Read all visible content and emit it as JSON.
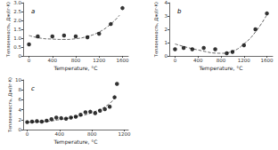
{
  "chart_data": [
    {
      "type": "scatter",
      "title": "a",
      "x_label": "Temperature, °C",
      "y_label": "Теплоемкость, Дж/(г·К)",
      "xlim": [
        -100,
        1700
      ],
      "xticks": [
        0,
        400,
        800,
        1200,
        1600
      ],
      "ylim": [
        0,
        3
      ],
      "yticks": [
        0,
        0.5,
        {
          "value": 1,
          "label": "1.0"
        },
        1.5,
        {
          "value": 2,
          "label": "2.0"
        },
        2.5,
        {
          "value": 3,
          "label": "3.0"
        }
      ],
      "grid": false,
      "series": [
        {
          "type": "scatter",
          "marker": "circle",
          "color": "#000000",
          "x": [
            0,
            150,
            400,
            600,
            800,
            1000,
            1200,
            1400,
            1600
          ],
          "values": [
            0.65,
            1.1,
            1.1,
            1.15,
            1.1,
            1.05,
            1.25,
            1.8,
            2.7
          ]
        },
        {
          "type": "line",
          "line_style": "dashed",
          "color": "#555555",
          "x": [
            0,
            200,
            400,
            600,
            800,
            1000,
            1200,
            1400,
            1550
          ],
          "values": [
            1.15,
            1.0,
            0.95,
            0.93,
            0.97,
            1.1,
            1.35,
            1.8,
            2.3
          ]
        }
      ]
    },
    {
      "type": "scatter",
      "title": "b",
      "x_label": "Temperature, °C",
      "y_label": "Теплоемкость, Дж/(г·К)",
      "xlim": [
        -100,
        1700
      ],
      "xticks": [
        0,
        400,
        800,
        1200,
        1600
      ],
      "ylim": [
        0,
        4
      ],
      "yticks": [
        0,
        1,
        2,
        3,
        4
      ],
      "grid": false,
      "series": [
        {
          "type": "scatter",
          "marker": "circle",
          "color": "#000000",
          "x": [
            0,
            150,
            300,
            500,
            700,
            900,
            1000,
            1200,
            1400,
            1600
          ],
          "values": [
            0.5,
            0.6,
            0.5,
            0.6,
            0.5,
            0.2,
            0.3,
            0.8,
            2.0,
            3.2
          ]
        },
        {
          "type": "line",
          "line_style": "dashed",
          "color": "#555555",
          "x": [
            0,
            400,
            800,
            1000,
            1200,
            1400,
            1600
          ],
          "values": [
            0.9,
            0.45,
            0.2,
            0.35,
            0.9,
            1.8,
            3.1
          ]
        }
      ]
    },
    {
      "type": "scatter",
      "title": "c",
      "x_label": "Temperature, °C",
      "y_label": "Теплоемкость, Дж/(г·К)",
      "xlim": [
        -50,
        1250
      ],
      "xticks": [
        0,
        400,
        800,
        1200
      ],
      "ylim": [
        0,
        10
      ],
      "yticks": [
        0,
        2,
        4,
        6,
        8,
        10
      ],
      "grid": false,
      "series": [
        {
          "type": "scatter",
          "marker": "circle",
          "color": "#000000",
          "x": [
            0,
            60,
            120,
            180,
            240,
            300,
            360,
            420,
            480,
            540,
            600,
            660,
            720,
            780,
            840,
            900,
            960,
            1020,
            1080,
            1110
          ],
          "values": [
            1.5,
            1.6,
            1.7,
            1.6,
            1.8,
            2.1,
            2.4,
            2.3,
            2.2,
            2.4,
            2.6,
            3.0,
            3.5,
            3.6,
            3.3,
            3.8,
            4.1,
            4.6,
            6.5,
            9.2
          ]
        },
        {
          "type": "line",
          "line_style": "dashed",
          "color": "#555555",
          "x": [
            0,
            200,
            400,
            600,
            800,
            1000,
            1100
          ],
          "values": [
            1.5,
            1.6,
            2.0,
            2.6,
            3.4,
            5.0,
            6.8
          ]
        }
      ]
    }
  ]
}
